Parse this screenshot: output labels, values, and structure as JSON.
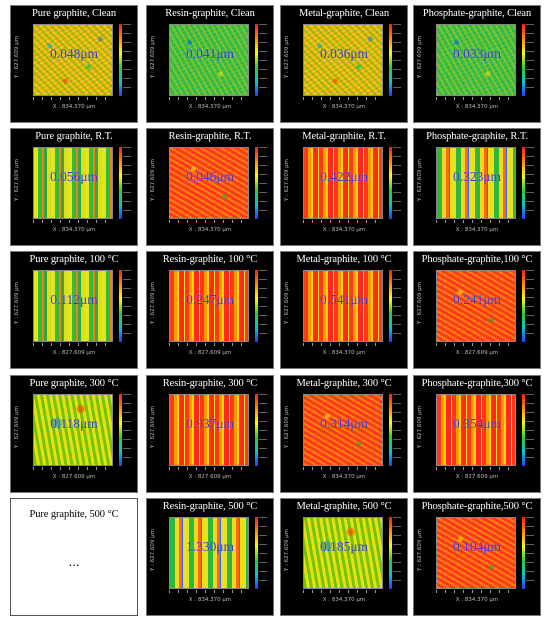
{
  "panels": [
    {
      "title": "Pure graphite, Clean",
      "roughness": "0.048μm",
      "xaxis": "X : 834.370 μm",
      "yaxis": "Y : 627.609 μm"
    },
    {
      "title": "Resin-graphite, Clean",
      "roughness": "0.041μm",
      "xaxis": "X : 834.370 μm",
      "yaxis": "Y : 627.609 μm"
    },
    {
      "title": "Metal-graphite, Clean",
      "roughness": "0.036μm",
      "xaxis": "X : 834.370 μm",
      "yaxis": "Y : 627.609 μm"
    },
    {
      "title": "Phosphate-graphite, Clean",
      "roughness": "0.033μm",
      "xaxis": "X : 834.370 μm",
      "yaxis": "Y : 627.609 μm"
    },
    {
      "title": "Pure graphite, R.T.",
      "roughness": "0.056μm",
      "xaxis": "X : 834.370 μm",
      "yaxis": "Y : 627.609 μm"
    },
    {
      "title": "Resin-graphite, R.T.",
      "roughness": "0.046μm",
      "xaxis": "X : 834.370 μm",
      "yaxis": "Y : 627.609 μm"
    },
    {
      "title": "Metal-graphite, R.T.",
      "roughness": "0.422μm",
      "xaxis": "X : 834.370 μm",
      "yaxis": "Y : 627.609 μm"
    },
    {
      "title": "Phosphate-graphite, R.T.",
      "roughness": "0.323μm",
      "xaxis": "X : 834.370 μm",
      "yaxis": "Y : 627.609 μm"
    },
    {
      "title": "Pure graphite, 100 °C",
      "roughness": "0.112μm",
      "xaxis": "X : 827.609 μm",
      "yaxis": "Y : 627.609 μm"
    },
    {
      "title": "Resin-graphite, 100 °C",
      "roughness": "0.247μm",
      "xaxis": "X : 827.609 μm",
      "yaxis": "Y : 627.609 μm"
    },
    {
      "title": "Metal-graphite, 100 °C",
      "roughness": "0.541μm",
      "xaxis": "X : 834.370 μm",
      "yaxis": "Y : 627.609 μm"
    },
    {
      "title": "Phosphate-graphite,100 °C",
      "roughness": "0.241μm",
      "xaxis": "X : 827.609 μm",
      "yaxis": "Y : 627.609 μm"
    },
    {
      "title": "Pure graphite, 300 °C",
      "roughness": "0.118μm",
      "xaxis": "X : 827.609 μm",
      "yaxis": "Y : 627.609 μm"
    },
    {
      "title": "Resin-graphite, 300 °C",
      "roughness": "0.937μm",
      "xaxis": "X : 827.609 μm",
      "yaxis": "Y : 627.609 μm"
    },
    {
      "title": "Metal-graphite, 300 °C",
      "roughness": "0.314μm",
      "xaxis": "X : 834.370 μm",
      "yaxis": "Y : 627.609 μm"
    },
    {
      "title": "Phosphate-graphite,300 °C",
      "roughness": "0.354μm",
      "xaxis": "X : 827.609 μm",
      "yaxis": "Y : 627.609 μm"
    },
    {
      "title": "Pure graphite, 500 °C",
      "roughness": "",
      "xaxis": "",
      "yaxis": "",
      "placeholder": "..."
    },
    {
      "title": "Resin-graphite, 500 °C",
      "roughness": "1.330μm",
      "xaxis": "X : 834.370 μm",
      "yaxis": "Y : 627.609 μm"
    },
    {
      "title": "Metal-graphite, 500 °C",
      "roughness": "0.185μm",
      "xaxis": "X : 834.370 μm",
      "yaxis": "Y : 627.609 μm"
    },
    {
      "title": "Phosphate-graphite,500 °C",
      "roughness": "0.104μm",
      "xaxis": "X : 834.370 μm",
      "yaxis": "Y : 627.609 μm"
    }
  ]
}
